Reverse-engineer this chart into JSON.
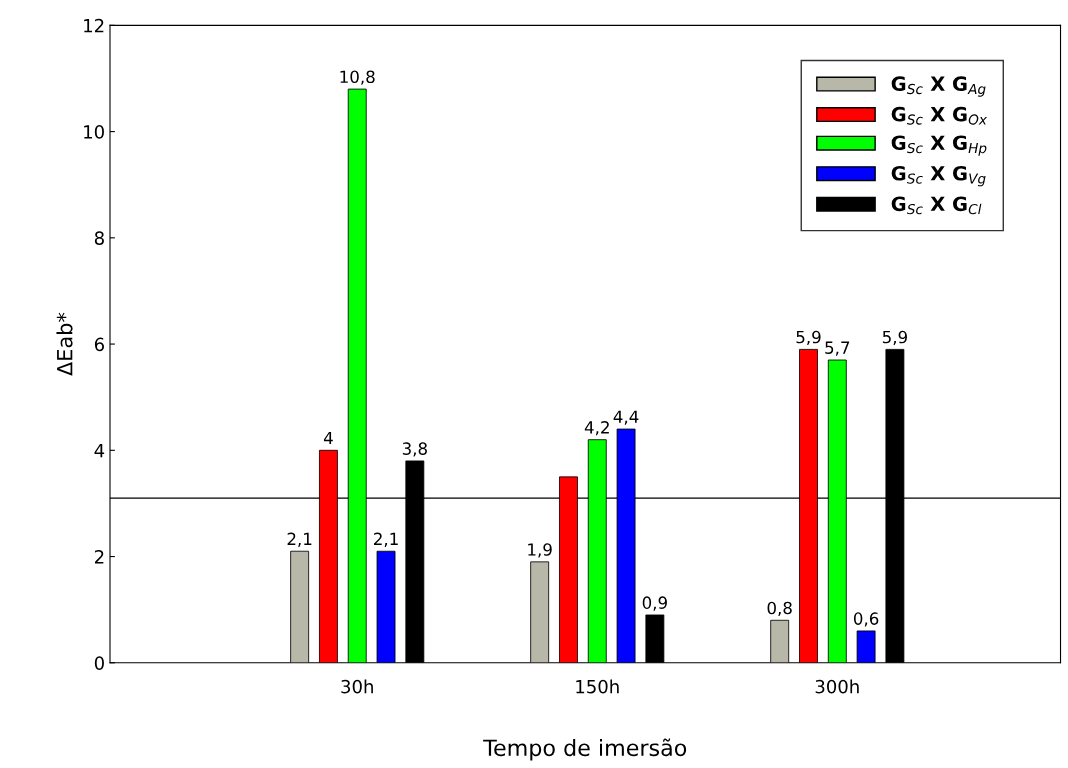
{
  "chart_data": {
    "type": "bar",
    "xlabel": "Tempo de imersão",
    "ylabel": "ΔEab*",
    "categories": [
      "30h",
      "150h",
      "300h"
    ],
    "series": [
      {
        "name": "G$_{Sc}$ X G$_{Ag}$",
        "color": "#b8b8a8",
        "values": [
          2.1,
          1.9,
          0.8
        ],
        "value_labels": [
          "2,1",
          "1,9",
          "0,8"
        ]
      },
      {
        "name": "G$_{Sc}$ X G$_{Ox}$",
        "color": "#ff0000",
        "values": [
          4,
          3.5,
          5.9
        ],
        "value_labels": [
          "4",
          null,
          "5,9"
        ]
      },
      {
        "name": "G$_{Sc}$ X G$_{Hp}$",
        "color": "#00ff00",
        "values": [
          10.8,
          4.2,
          5.7
        ],
        "value_labels": [
          "10,8",
          "4,2",
          "5,7"
        ]
      },
      {
        "name": "G$_{Sc}$ X G$_{Vg}$",
        "color": "#0000ff",
        "values": [
          2.1,
          4.4,
          0.6
        ],
        "value_labels": [
          "2,1",
          "4,4",
          "0,6"
        ]
      },
      {
        "name": "G$_{Sc}$ X G$_{Cl}$",
        "color": "#000000",
        "values": [
          3.8,
          0.9,
          5.9
        ],
        "value_labels": [
          "3,8",
          "0,9",
          "5,9"
        ]
      }
    ],
    "ylim": [
      0,
      12
    ],
    "yticks": [
      0,
      2,
      4,
      6,
      8,
      10,
      12
    ],
    "ref_lines": [
      {
        "axis": "y",
        "value": 3.1,
        "label": null,
        "color": "#000000"
      }
    ],
    "legend": "top right",
    "grid": false
  }
}
